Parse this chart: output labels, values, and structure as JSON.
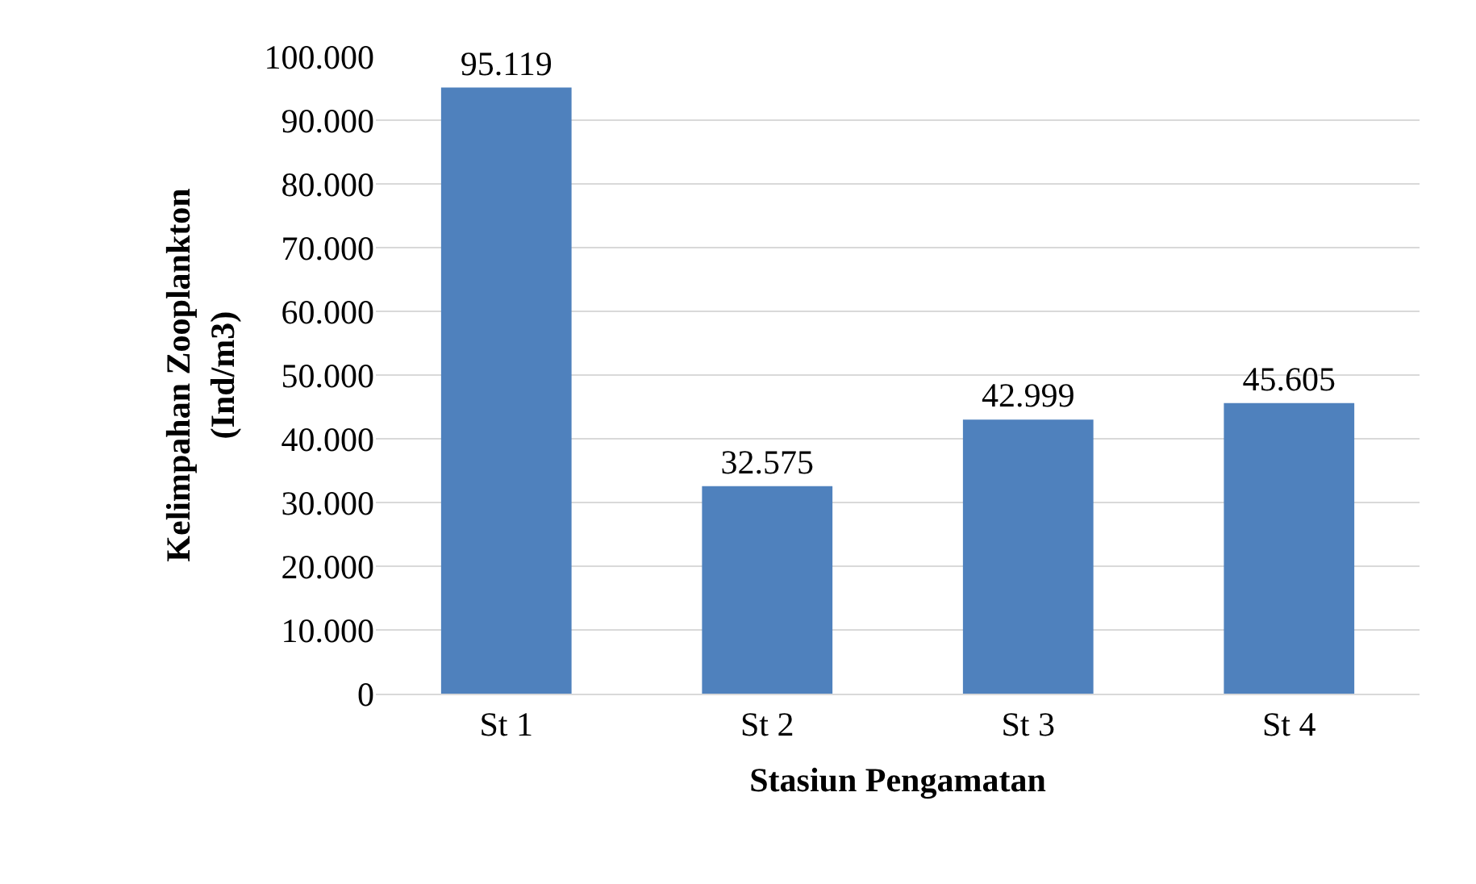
{
  "chart_data": {
    "type": "bar",
    "xlabel": "Stasiun Pengamatan",
    "ylabel": "Kelimpahan Zooplankton\n(Ind/m3)",
    "categories": [
      "St 1",
      "St 2",
      "St 3",
      "St 4"
    ],
    "values": [
      95119,
      32575,
      42999,
      45605
    ],
    "value_labels": [
      "95.119",
      "32.575",
      "42.999",
      "45.605"
    ],
    "color": "#4f81bd",
    "ylim": [
      0,
      100000
    ],
    "yticks": [
      0,
      {
        "value": 10000,
        "label": "10.000"
      },
      {
        "value": 20000,
        "label": "20.000"
      },
      {
        "value": 30000,
        "label": "30.000"
      },
      {
        "value": 40000,
        "label": "40.000"
      },
      {
        "value": 50000,
        "label": "50.000"
      },
      {
        "value": 60000,
        "label": "60.000"
      },
      {
        "value": 70000,
        "label": "70.000"
      },
      {
        "value": 80000,
        "label": "80.000"
      },
      {
        "value": 90000,
        "label": "90.000"
      },
      {
        "value": 100000,
        "label": "100.000"
      }
    ],
    "grid": "y"
  }
}
